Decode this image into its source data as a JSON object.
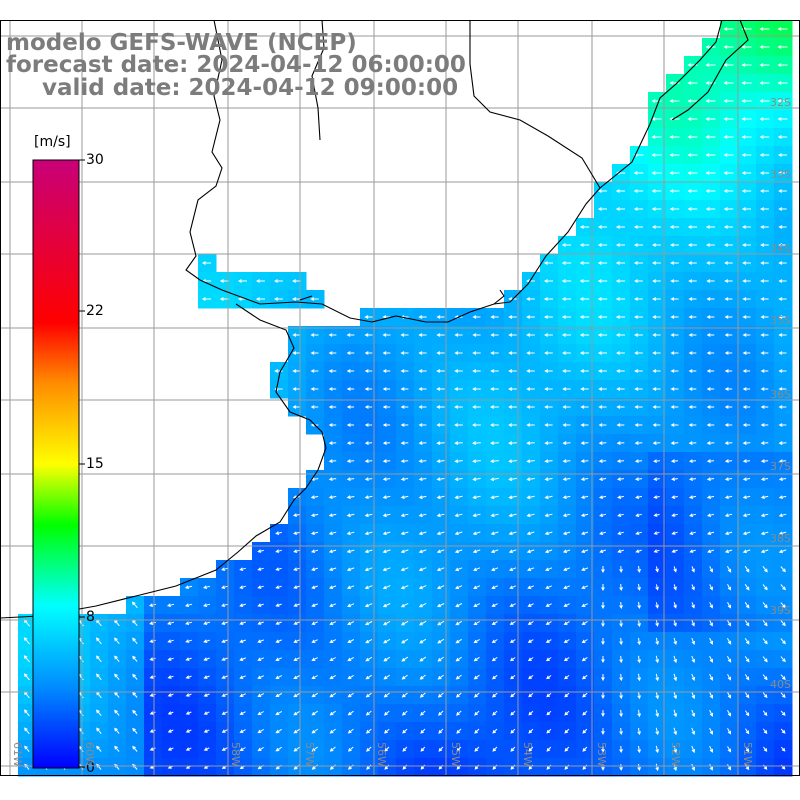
{
  "title": {
    "line1": "modelo GEFS-WAVE (NCEP)",
    "line2": "forecast date: 2024-04-12 06:00:00",
    "line3": "valid date: 2024-04-12 09:00:00"
  },
  "colorbar": {
    "unit": "[m/s]",
    "ticks": [
      "30",
      "22",
      "15",
      "8",
      "0"
    ],
    "colors": [
      "#0000ff",
      "#0088ff",
      "#00ffff",
      "#00ff00",
      "#ffff00",
      "#ff8800",
      "#ff0000",
      "#cc0077"
    ]
  },
  "lat_labels": [
    "32S",
    "33S",
    "34S",
    "35S",
    "36S",
    "37S",
    "38S",
    "39S",
    "40S"
  ],
  "lon_labels": [
    "61W",
    "60W",
    "58W",
    "57W",
    "56W",
    "55W",
    "54W",
    "53W",
    "52W",
    "51W"
  ],
  "colors": {
    "land": "#ffffff",
    "coast": "#000000",
    "grid": "#9a9a9a",
    "arrow": "#ffffff"
  }
}
